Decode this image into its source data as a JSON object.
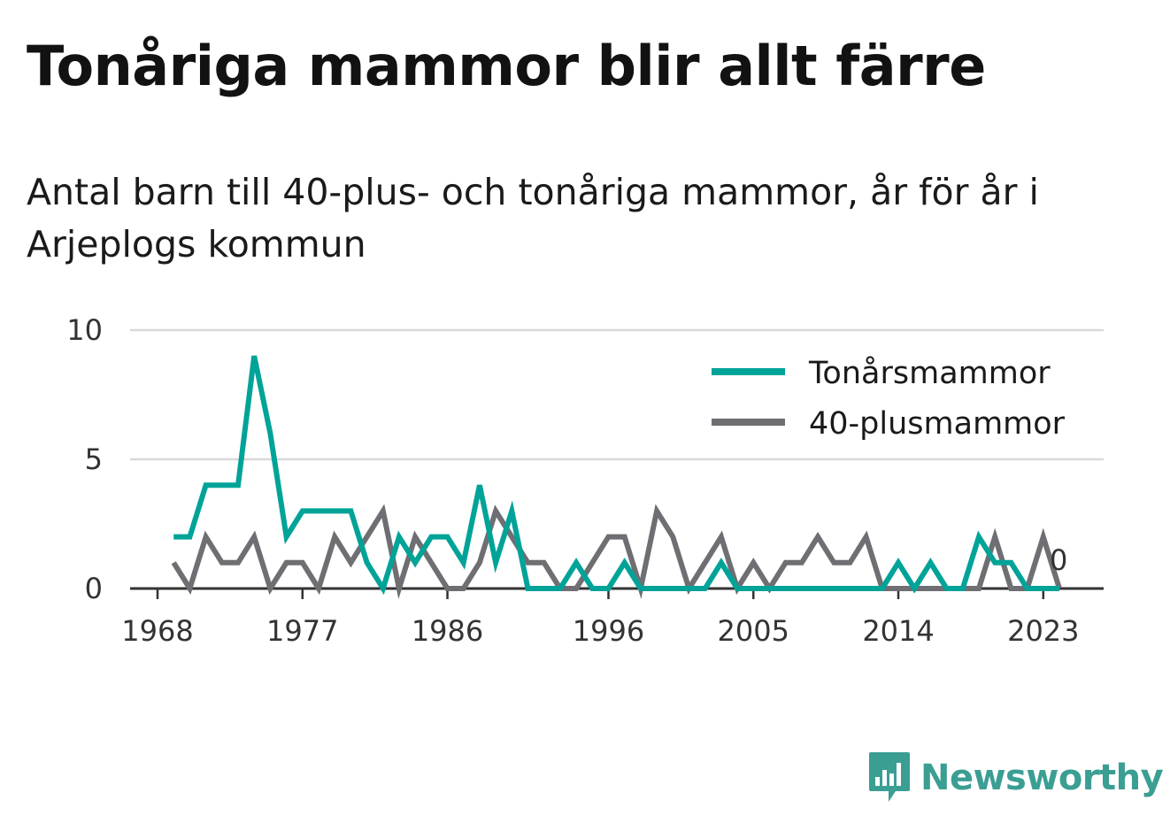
{
  "header": {
    "title": "Tonåriga mammor blir allt färre",
    "subtitle": "Antal barn till 40-plus- och tonåriga mammor, år för år i Arjeplogs kommun"
  },
  "colors": {
    "teal": "#00a398",
    "gray": "#6e6e73",
    "grid": "#d9d9d9",
    "axis": "#333333"
  },
  "logo": {
    "text": "Newsworthy",
    "icon": "newsworthy-bar-chart-icon",
    "color": "#3a9e93"
  },
  "chart_data": {
    "type": "line",
    "title": "Tonåriga mammor blir allt färre",
    "subtitle": "Antal barn till 40-plus- och tonåriga mammor, år för år i Arjeplogs kommun",
    "xlabel": "",
    "ylabel": "",
    "ylim": [
      0,
      10
    ],
    "yticks": [
      0,
      5,
      10
    ],
    "xlim": [
      1968,
      2026
    ],
    "xticks": [
      1968,
      1977,
      1986,
      1996,
      2005,
      2014,
      2023
    ],
    "grid": true,
    "legend_placement": "top-right",
    "x": [
      1969,
      1970,
      1971,
      1972,
      1973,
      1974,
      1975,
      1976,
      1977,
      1978,
      1979,
      1980,
      1981,
      1982,
      1983,
      1984,
      1985,
      1986,
      1987,
      1988,
      1989,
      1990,
      1991,
      1992,
      1993,
      1994,
      1995,
      1996,
      1997,
      1998,
      1999,
      2000,
      2001,
      2002,
      2003,
      2004,
      2005,
      2006,
      2007,
      2008,
      2009,
      2010,
      2011,
      2012,
      2013,
      2014,
      2015,
      2016,
      2017,
      2018,
      2019,
      2020,
      2021,
      2022,
      2023,
      2024
    ],
    "series": [
      {
        "name": "Tonårsmammor",
        "color": "#00a398",
        "values": [
          2,
          2,
          4,
          4,
          4,
          9,
          6,
          2,
          3,
          3,
          3,
          3,
          1,
          0,
          2,
          1,
          2,
          2,
          1,
          4,
          1,
          3,
          0,
          0,
          0,
          1,
          0,
          0,
          1,
          0,
          0,
          0,
          0,
          0,
          1,
          0,
          0,
          0,
          0,
          0,
          0,
          0,
          0,
          0,
          0,
          1,
          0,
          1,
          0,
          0,
          2,
          1,
          1,
          0,
          0,
          0
        ]
      },
      {
        "name": "40-plusmammor",
        "color": "#6e6e73",
        "values": [
          1,
          0,
          2,
          1,
          1,
          2,
          0,
          1,
          1,
          0,
          2,
          1,
          2,
          3,
          0,
          2,
          1,
          0,
          0,
          1,
          3,
          2,
          1,
          1,
          0,
          0,
          1,
          2,
          2,
          0,
          3,
          2,
          0,
          1,
          2,
          0,
          1,
          0,
          1,
          1,
          2,
          1,
          1,
          2,
          0,
          0,
          0,
          0,
          0,
          0,
          0,
          2,
          0,
          0,
          2,
          0
        ]
      }
    ],
    "end_label": "0"
  }
}
